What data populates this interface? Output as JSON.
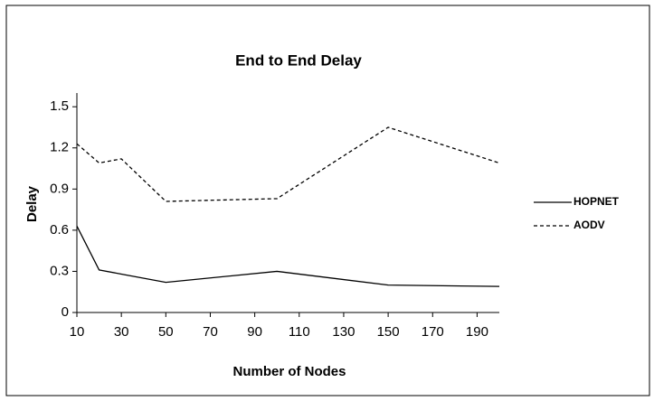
{
  "chart_data": {
    "type": "line",
    "title": "End to End Delay",
    "xlabel": "Number of Nodes",
    "ylabel": "Delay",
    "xlim": [
      10,
      200
    ],
    "xticks": [
      10,
      30,
      50,
      70,
      90,
      110,
      130,
      150,
      170,
      190
    ],
    "ylim": [
      0,
      1.6
    ],
    "yticks": [
      0,
      0.3,
      0.6,
      0.9,
      1.2,
      1.5
    ],
    "grid": false,
    "legend": "right",
    "x": [
      10,
      20,
      30,
      50,
      100,
      150,
      200
    ],
    "series": [
      {
        "name": "HOPNET",
        "color": "#000000",
        "dashed": false,
        "values": [
          0.63,
          0.31,
          0.28,
          0.22,
          0.3,
          0.2,
          0.19
        ]
      },
      {
        "name": "AODV",
        "color": "#000000",
        "dashed": true,
        "values": [
          1.23,
          1.09,
          1.12,
          0.81,
          0.83,
          1.35,
          1.09
        ]
      }
    ]
  }
}
